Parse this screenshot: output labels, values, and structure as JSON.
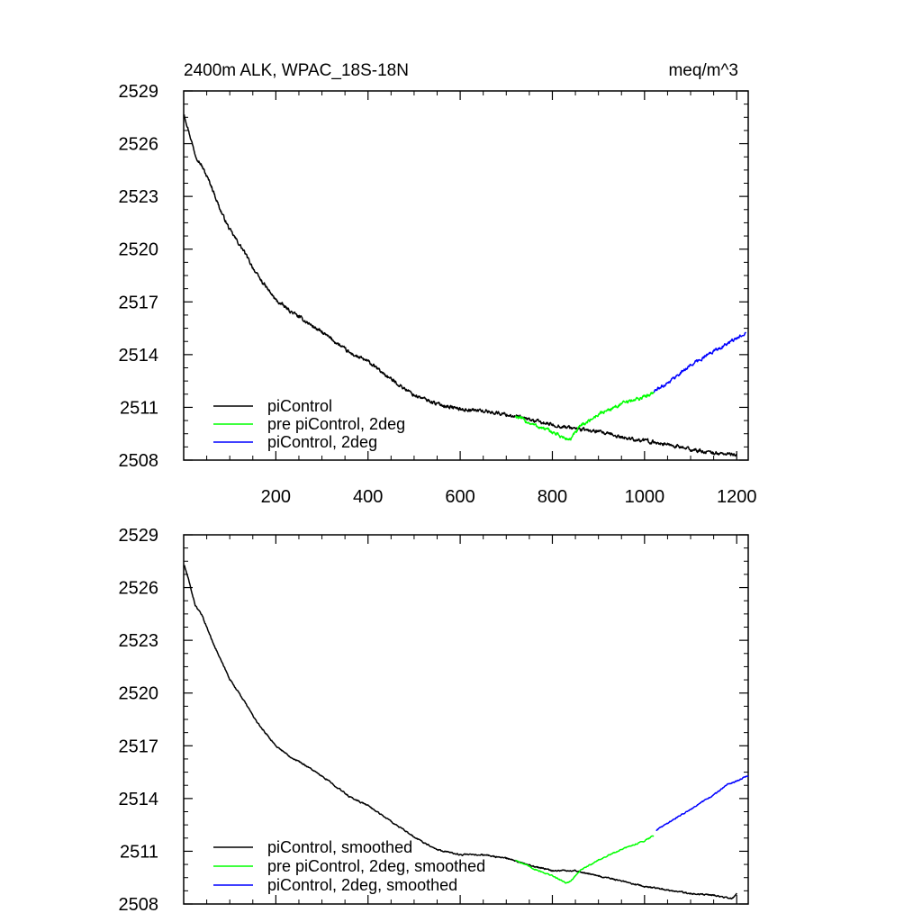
{
  "colors": {
    "black": "#000000",
    "green": "#00ff00",
    "blue": "#0000ff"
  },
  "chart_data": [
    {
      "type": "line",
      "title": "2400m ALK, WPAC_18S-18N",
      "units_label": "meq/m^3",
      "xlim": [
        0,
        1225
      ],
      "ylim": [
        2508,
        2529
      ],
      "yticks": [
        2508,
        2511,
        2514,
        2517,
        2520,
        2523,
        2526,
        2529
      ],
      "xticks": [
        200,
        400,
        600,
        800,
        1000,
        1200
      ],
      "xtick_labels_shown": true,
      "legend_location": "bottom-left",
      "series": [
        {
          "name": "piControl",
          "color": "#000000",
          "noise": 0.18,
          "x": [
            1,
            10,
            25,
            40,
            60,
            80,
            100,
            130,
            160,
            200,
            230,
            270,
            320,
            360,
            400,
            450,
            500,
            550,
            600,
            650,
            700,
            750,
            800,
            850,
            900,
            950,
            1000,
            1050,
            1100,
            1150,
            1200
          ],
          "values": [
            2527.7,
            2526.8,
            2525.4,
            2524.7,
            2523.6,
            2522.2,
            2521.1,
            2519.9,
            2518.5,
            2517.1,
            2516.5,
            2515.8,
            2514.9,
            2514.1,
            2513.6,
            2512.6,
            2511.7,
            2511.2,
            2510.9,
            2510.8,
            2510.6,
            2510.3,
            2510.0,
            2509.8,
            2509.6,
            2509.3,
            2509.1,
            2508.9,
            2508.6,
            2508.4,
            2508.3
          ]
        },
        {
          "name": "pre piControl, 2deg",
          "color": "#00ff00",
          "noise": 0.18,
          "x": [
            720,
            760,
            800,
            830,
            840,
            860,
            900,
            950,
            1000,
            1020
          ],
          "values": [
            2510.5,
            2510.0,
            2509.6,
            2509.2,
            2509.2,
            2509.9,
            2510.6,
            2511.2,
            2511.6,
            2511.9
          ]
        },
        {
          "name": "piControl, 2deg",
          "color": "#0000ff",
          "noise": 0.16,
          "x": [
            1020,
            1050,
            1100,
            1150,
            1200,
            1220
          ],
          "values": [
            2511.9,
            2512.4,
            2513.4,
            2514.2,
            2514.9,
            2515.3
          ]
        }
      ]
    },
    {
      "type": "line",
      "title": "",
      "units_label": "",
      "xlim": [
        0,
        1225
      ],
      "ylim": [
        2508,
        2529
      ],
      "yticks": [
        2508,
        2511,
        2514,
        2517,
        2520,
        2523,
        2526,
        2529
      ],
      "xticks": [
        200,
        400,
        600,
        800,
        1000,
        1200
      ],
      "xtick_labels_shown": false,
      "legend_location": "bottom-left",
      "series": [
        {
          "name": "piControl, smoothed",
          "color": "#000000",
          "noise": 0.07,
          "x": [
            1,
            10,
            25,
            40,
            60,
            80,
            100,
            130,
            160,
            200,
            230,
            270,
            320,
            360,
            400,
            450,
            500,
            550,
            600,
            650,
            700,
            750,
            800,
            850,
            900,
            950,
            1000,
            1050,
            1100,
            1150,
            1190,
            1200
          ],
          "values": [
            2527.3,
            2526.5,
            2525.0,
            2524.4,
            2523.1,
            2521.9,
            2520.8,
            2519.6,
            2518.3,
            2517.0,
            2516.4,
            2515.8,
            2514.9,
            2514.1,
            2513.6,
            2512.7,
            2511.8,
            2511.1,
            2510.8,
            2510.8,
            2510.6,
            2510.2,
            2509.9,
            2509.9,
            2509.6,
            2509.3,
            2509.0,
            2508.8,
            2508.6,
            2508.5,
            2508.3,
            2508.6
          ]
        },
        {
          "name": "pre piControl, 2deg, smoothed",
          "color": "#00ff00",
          "noise": 0.06,
          "x": [
            720,
            760,
            800,
            830,
            840,
            860,
            900,
            950,
            1000,
            1020
          ],
          "values": [
            2510.5,
            2510.0,
            2509.6,
            2509.2,
            2509.3,
            2509.9,
            2510.5,
            2511.1,
            2511.6,
            2511.9
          ]
        },
        {
          "name": "piControl, 2deg, smoothed",
          "color": "#0000ff",
          "noise": 0.06,
          "x": [
            1025,
            1050,
            1100,
            1150,
            1180,
            1200,
            1225
          ],
          "values": [
            2512.2,
            2512.6,
            2513.4,
            2514.2,
            2514.8,
            2515.0,
            2515.3
          ]
        }
      ]
    }
  ]
}
